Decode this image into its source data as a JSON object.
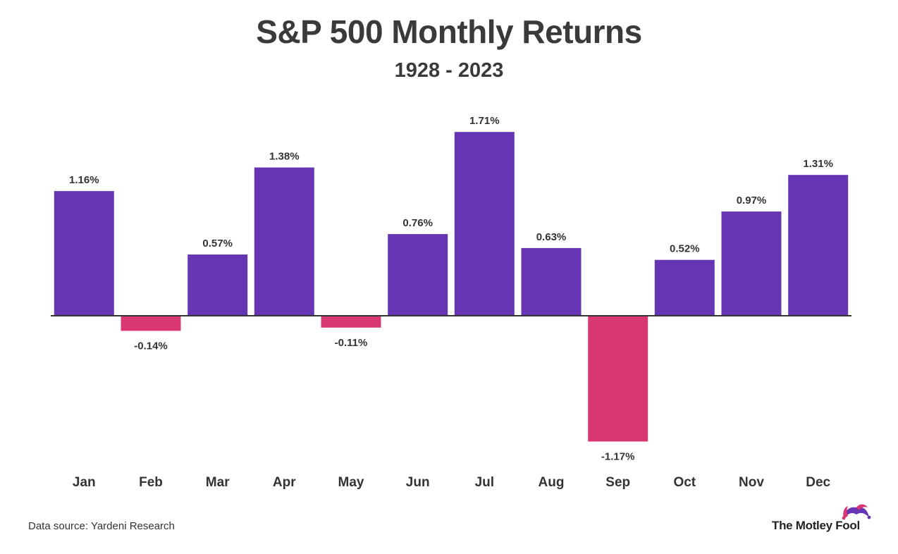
{
  "header": {
    "title": "S&P 500 Monthly Returns",
    "subtitle": "1928 - 2023"
  },
  "footer": {
    "source": "Data source: Yardeni Research",
    "brand": "The Motley Fool"
  },
  "colors": {
    "positive": "#6535b4",
    "negative": "#d93674",
    "axis": "#333333",
    "text": "#333333"
  },
  "chart_data": {
    "type": "bar",
    "title": "S&P 500 Monthly Returns",
    "subtitle": "1928 - 2023",
    "xlabel": "",
    "ylabel": "",
    "ylim": [
      -1.3,
      1.8
    ],
    "grid": false,
    "legend": "none",
    "categories": [
      "Jan",
      "Feb",
      "Mar",
      "Apr",
      "May",
      "Jun",
      "Jul",
      "Aug",
      "Sep",
      "Oct",
      "Nov",
      "Dec"
    ],
    "values": [
      1.16,
      -0.14,
      0.57,
      1.38,
      -0.11,
      0.76,
      1.71,
      0.63,
      -1.17,
      0.52,
      0.97,
      1.31
    ],
    "labels": [
      "1.16%",
      "-0.14%",
      "0.57%",
      "1.38%",
      "-0.11%",
      "0.76%",
      "1.71%",
      "0.63%",
      "-1.17%",
      "0.52%",
      "0.97%",
      "1.31%"
    ]
  }
}
